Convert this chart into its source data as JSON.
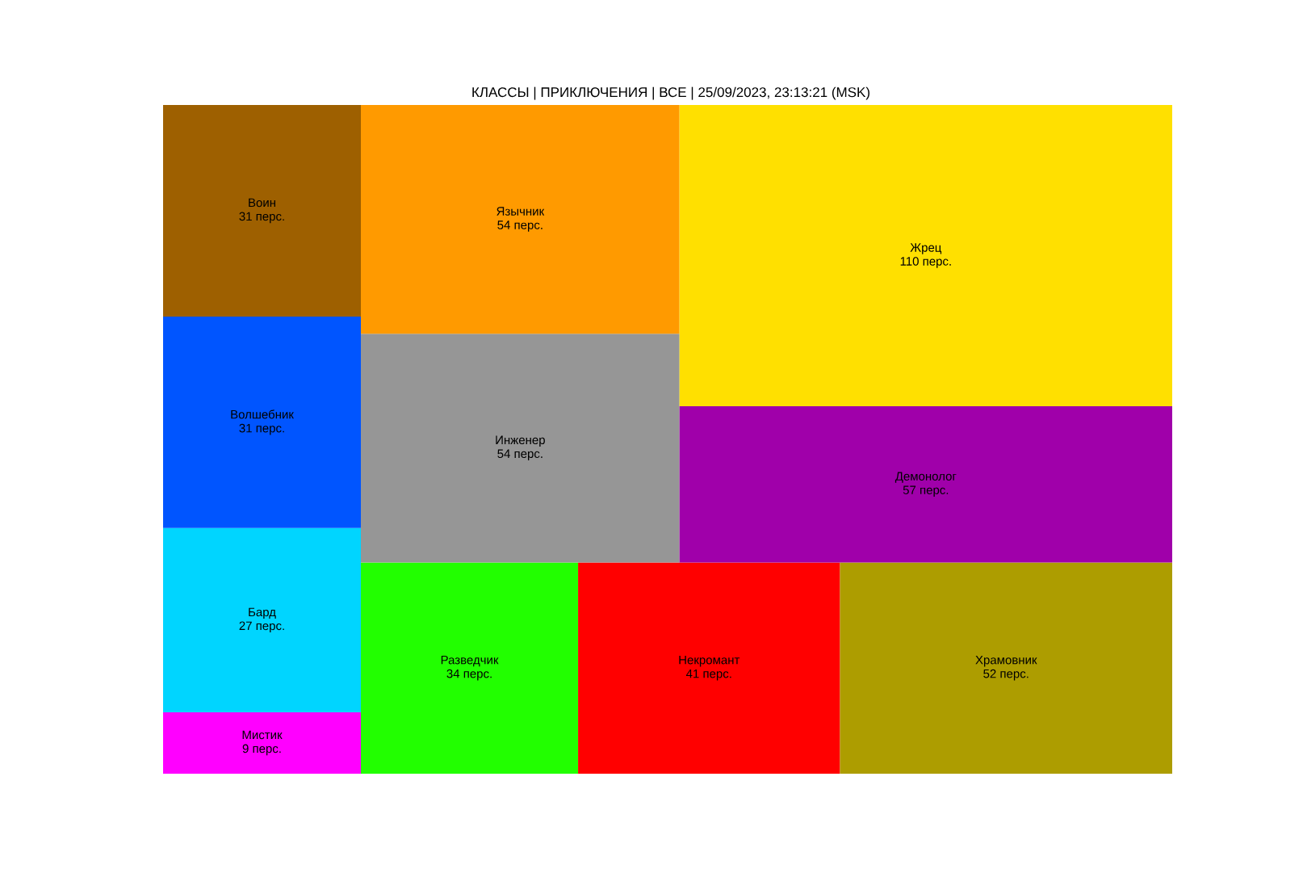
{
  "chart_data": {
    "type": "other",
    "title": "КЛАССЫ | ПРИКЛЮЧЕНИЯ | ВСЕ | 25/09/2023, 23:13:21 (MSK)",
    "categories": [
      "Мистик",
      "Бард",
      "Волшебник",
      "Воин",
      "Разведчик",
      "Некромант",
      "Храмовник",
      "Инженер",
      "Язычник",
      "Демонолог",
      "Жрец"
    ],
    "values": [
      9,
      27,
      31,
      31,
      34,
      41,
      52,
      54,
      54,
      57,
      110
    ],
    "value_labels": [
      "9 перс.",
      "27 перс.",
      "31 перс.",
      "31 перс.",
      "34 перс.",
      "41 перс.",
      "52 перс.",
      "54 перс.",
      "54 перс.",
      "57 перс.",
      "110 перс."
    ],
    "colors": [
      "#ff00ff",
      "#00d5ff",
      "#0055ff",
      "#9e6000",
      "#22ff00",
      "#ff0000",
      "#ad9d00",
      "#969696",
      "#ff9a00",
      "#a000aa",
      "#ffe000"
    ]
  }
}
